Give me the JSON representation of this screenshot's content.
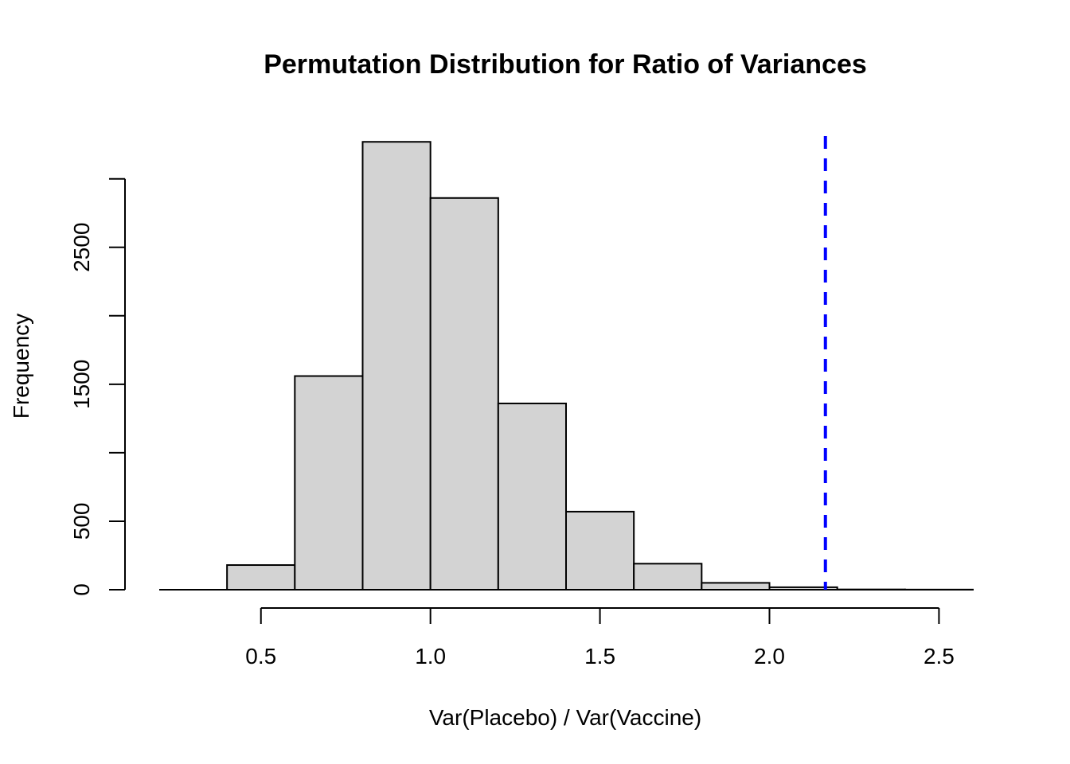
{
  "chart_data": {
    "type": "bar",
    "title": "Permutation Distribution for Ratio of Variances",
    "xlabel": "Var(Placebo) / Var(Vaccine)",
    "ylabel": "Frequency",
    "bins": [
      {
        "x0": 0.4,
        "x1": 0.6,
        "count": 180
      },
      {
        "x0": 0.6,
        "x1": 0.8,
        "count": 1560
      },
      {
        "x0": 0.8,
        "x1": 1.0,
        "count": 3270
      },
      {
        "x0": 1.0,
        "x1": 1.2,
        "count": 2860
      },
      {
        "x0": 1.2,
        "x1": 1.4,
        "count": 1360
      },
      {
        "x0": 1.4,
        "x1": 1.6,
        "count": 570
      },
      {
        "x0": 1.6,
        "x1": 1.8,
        "count": 190
      },
      {
        "x0": 1.8,
        "x1": 2.0,
        "count": 50
      },
      {
        "x0": 2.0,
        "x1": 2.2,
        "count": 18
      },
      {
        "x0": 2.2,
        "x1": 2.4,
        "count": 2
      },
      {
        "x0": 2.4,
        "x1": 2.6,
        "count": 1
      }
    ],
    "xlim": [
      0.2,
      2.6
    ],
    "ylim": [
      0,
      3400
    ],
    "x_ticks": [
      0.5,
      1.0,
      1.5,
      2.0,
      2.5
    ],
    "x_tick_labels": [
      "0.5",
      "1.0",
      "1.5",
      "2.0",
      "2.5"
    ],
    "y_ticks": [
      0,
      500,
      1000,
      1500,
      2000,
      2500,
      3000
    ],
    "y_tick_labels": [
      "0",
      "500",
      "",
      "1500",
      "",
      "2500",
      ""
    ],
    "reference_line": {
      "x": 2.165,
      "color": "#0000ff",
      "style": "dashed"
    },
    "bar_fill": "#d3d3d3",
    "grid": false,
    "legend": "none"
  }
}
